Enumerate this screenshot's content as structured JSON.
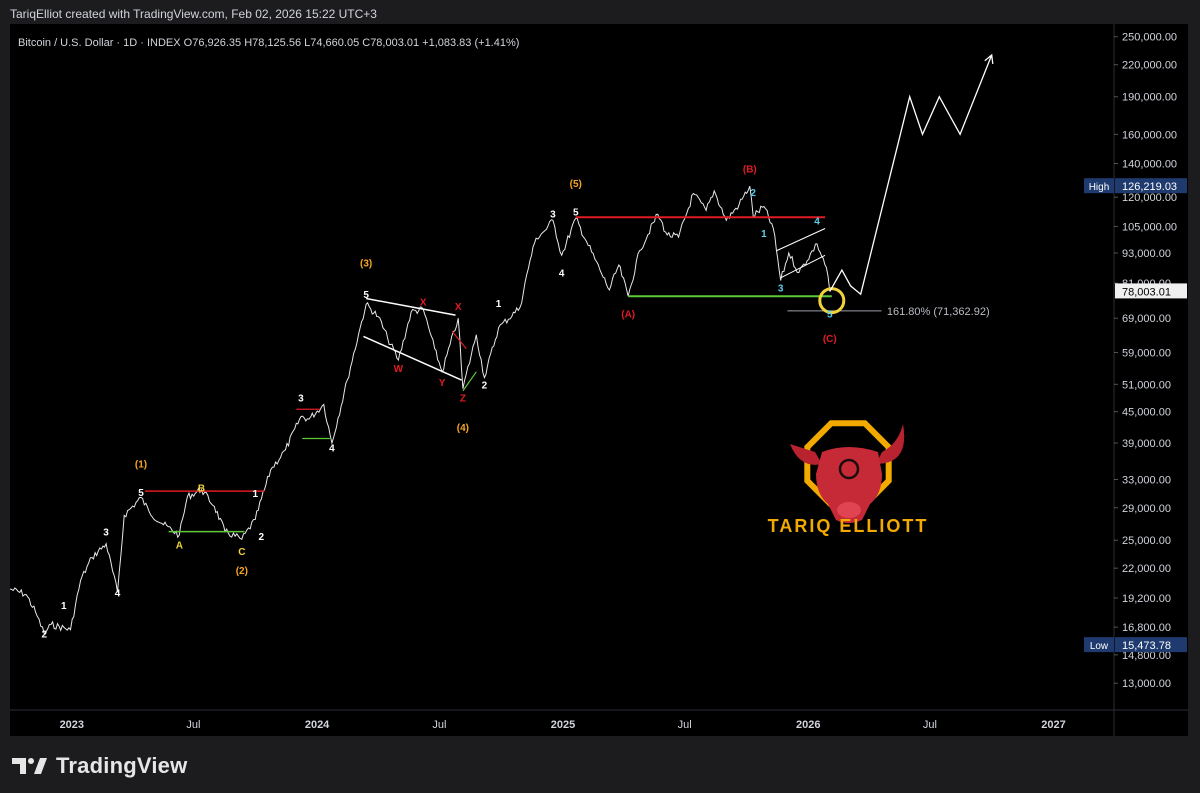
{
  "header": {
    "created_by": "TariqElliot created with TradingView.com, Feb 02, 2026 15:22 UTC+3"
  },
  "legend": {
    "symbol": "Bitcoin / U.S. Dollar · 1D · INDEX",
    "open": "O76,926.35",
    "high": "H78,125.56",
    "low": "L74,660.05",
    "close": "C78,003.01",
    "change": "+1,083.83 (+1.41%)"
  },
  "footer": {
    "brand": "TradingView"
  },
  "logo": {
    "text": "TARIQ ELLIOTT"
  },
  "colors": {
    "red": "#e01b24",
    "green": "#5ec93a",
    "orange": "#f5a623",
    "yellow": "#f0d33a",
    "cyan": "#5ad0f0",
    "white": "#ffffff",
    "label_blue": "#1e3a6e"
  },
  "chart_data": {
    "type": "line",
    "title": "Bitcoin / U.S. Dollar · 1D · INDEX",
    "y_scale": "log",
    "ylim": [
      11500,
      265000
    ],
    "y_ticks": [
      "250,000.00",
      "220,000.00",
      "190,000.00",
      "160,000.00",
      "140,000.00",
      "120,000.00",
      "105,000.00",
      "93,000.00",
      "81,000.00",
      "69,000.00",
      "59,000.00",
      "51,000.00",
      "45,000.00",
      "39,000.00",
      "33,000.00",
      "29,000.00",
      "25,000.00",
      "22,000.00",
      "19,200.00",
      "16,800.00",
      "14,800.00",
      "13,000.00"
    ],
    "x_ticks": [
      "2023",
      "Jul",
      "2024",
      "Jul",
      "2025",
      "Jul",
      "2026",
      "Jul",
      "2027"
    ],
    "xlim": [
      "2022-10-01",
      "2027-04-01"
    ],
    "price_series": {
      "name": "BTCUSD",
      "points": [
        [
          "2022-10-01",
          20000
        ],
        [
          "2022-10-25",
          19500
        ],
        [
          "2022-11-08",
          18000
        ],
        [
          "2022-11-21",
          16300
        ],
        [
          "2022-12-01",
          17000
        ],
        [
          "2022-12-30",
          16600
        ],
        [
          "2023-01-14",
          20800
        ],
        [
          "2023-01-31",
          23100
        ],
        [
          "2023-02-21",
          24600
        ],
        [
          "2023-03-10",
          19700
        ],
        [
          "2023-03-20",
          28000
        ],
        [
          "2023-04-14",
          30400
        ],
        [
          "2023-04-26",
          28500
        ],
        [
          "2023-05-15",
          27000
        ],
        [
          "2023-06-10",
          25600
        ],
        [
          "2023-06-22",
          30500
        ],
        [
          "2023-07-13",
          31500
        ],
        [
          "2023-08-01",
          29200
        ],
        [
          "2023-08-17",
          26000
        ],
        [
          "2023-09-11",
          25100
        ],
        [
          "2023-10-01",
          27500
        ],
        [
          "2023-10-24",
          34500
        ],
        [
          "2023-11-15",
          37800
        ],
        [
          "2023-12-08",
          44000
        ],
        [
          "2023-12-20",
          43500
        ],
        [
          "2024-01-11",
          46500
        ],
        [
          "2024-01-23",
          39000
        ],
        [
          "2024-02-15",
          52000
        ],
        [
          "2024-03-05",
          66000
        ],
        [
          "2024-03-14",
          73500
        ],
        [
          "2024-04-01",
          69500
        ],
        [
          "2024-04-15",
          63000
        ],
        [
          "2024-05-01",
          57000
        ],
        [
          "2024-05-20",
          71000
        ],
        [
          "2024-06-07",
          71900
        ],
        [
          "2024-06-24",
          60000
        ],
        [
          "2024-07-05",
          54000
        ],
        [
          "2024-07-29",
          69000
        ],
        [
          "2024-08-05",
          50000
        ],
        [
          "2024-08-25",
          64000
        ],
        [
          "2024-09-06",
          52600
        ],
        [
          "2024-09-27",
          66000
        ],
        [
          "2024-10-29",
          72500
        ],
        [
          "2024-11-13",
          90000
        ],
        [
          "2024-11-22",
          99500
        ],
        [
          "2024-12-05",
          103000
        ],
        [
          "2024-12-17",
          108000
        ],
        [
          "2024-12-30",
          92000
        ],
        [
          "2025-01-20",
          109000
        ],
        [
          "2025-02-05",
          98000
        ],
        [
          "2025-02-25",
          86000
        ],
        [
          "2025-03-11",
          78500
        ],
        [
          "2025-03-25",
          88000
        ],
        [
          "2025-04-08",
          76300
        ],
        [
          "2025-04-25",
          94000
        ],
        [
          "2025-05-22",
          111000
        ],
        [
          "2025-06-05",
          101000
        ],
        [
          "2025-06-22",
          100000
        ],
        [
          "2025-07-14",
          122000
        ],
        [
          "2025-08-02",
          113000
        ],
        [
          "2025-08-14",
          123500
        ],
        [
          "2025-09-01",
          108000
        ],
        [
          "2025-09-20",
          116000
        ],
        [
          "2025-10-06",
          126200
        ],
        [
          "2025-10-11",
          110000
        ],
        [
          "2025-10-27",
          115000
        ],
        [
          "2025-11-10",
          104000
        ],
        [
          "2025-11-21",
          82000
        ],
        [
          "2025-12-03",
          93000
        ],
        [
          "2025-12-18",
          85000
        ],
        [
          "2026-01-14",
          97000
        ],
        [
          "2026-01-28",
          87000
        ],
        [
          "2026-02-02",
          78003
        ]
      ]
    },
    "projection": {
      "points": [
        [
          "2026-02-02",
          78003
        ],
        [
          "2026-02-20",
          86000
        ],
        [
          "2026-03-05",
          80000
        ],
        [
          "2026-03-20",
          77000
        ],
        [
          "2026-06-01",
          190000
        ],
        [
          "2026-06-20",
          160000
        ],
        [
          "2026-07-15",
          190000
        ],
        [
          "2026-08-15",
          160000
        ],
        [
          "2026-10-01",
          230000
        ]
      ]
    },
    "annotations": {
      "high": {
        "label": "High",
        "value": 126219.03,
        "text": "126,219.03"
      },
      "low": {
        "label": "Low",
        "value": 15473.78,
        "text": "15,473.78"
      },
      "last_price": {
        "value": 78003.01,
        "text": "78,003.01"
      },
      "fib": {
        "text": "161.80% (71,362.92)",
        "value": 71362.92
      },
      "wave_labels": [
        {
          "text": "1",
          "date": "2022-12-20",
          "price": 18600,
          "color": "white",
          "pos": "above"
        },
        {
          "text": "2",
          "date": "2022-11-21",
          "price": 16300,
          "color": "white",
          "pos": "below"
        },
        {
          "text": "3",
          "date": "2023-02-21",
          "price": 26000,
          "color": "white",
          "pos": "above"
        },
        {
          "text": "4",
          "date": "2023-03-10",
          "price": 19700,
          "color": "white",
          "pos": "below"
        },
        {
          "text": "5",
          "date": "2023-04-14",
          "price": 31200,
          "color": "white",
          "pos": "above"
        },
        {
          "text": "(1)",
          "date": "2023-04-14",
          "price": 35500,
          "color": "orange",
          "pos": "above"
        },
        {
          "text": "A",
          "date": "2023-06-10",
          "price": 24500,
          "color": "yellow",
          "pos": "below"
        },
        {
          "text": "B",
          "date": "2023-07-13",
          "price": 31800,
          "color": "yellow",
          "pos": "above"
        },
        {
          "text": "C",
          "date": "2023-09-11",
          "price": 23800,
          "color": "yellow",
          "pos": "below"
        },
        {
          "text": "1",
          "date": "2023-10-01",
          "price": 31000,
          "color": "white",
          "pos": "above"
        },
        {
          "text": "2",
          "date": "2023-10-10",
          "price": 25500,
          "color": "white",
          "pos": "below"
        },
        {
          "text": "(2)",
          "date": "2023-09-11",
          "price": 21800,
          "color": "orange",
          "pos": "below"
        },
        {
          "text": "3",
          "date": "2023-12-08",
          "price": 48000,
          "color": "white",
          "pos": "above"
        },
        {
          "text": "4",
          "date": "2024-01-23",
          "price": 38200,
          "color": "white",
          "pos": "below"
        },
        {
          "text": "5",
          "date": "2024-03-14",
          "price": 77000,
          "color": "white",
          "pos": "above"
        },
        {
          "text": "(3)",
          "date": "2024-03-14",
          "price": 89000,
          "color": "orange",
          "pos": "above"
        },
        {
          "text": "W",
          "date": "2024-05-01",
          "price": 55000,
          "color": "red",
          "pos": "below"
        },
        {
          "text": "X",
          "date": "2024-06-07",
          "price": 74500,
          "color": "red",
          "pos": "above"
        },
        {
          "text": "Y",
          "date": "2024-07-05",
          "price": 51500,
          "color": "red",
          "pos": "below"
        },
        {
          "text": "X",
          "date": "2024-07-29",
          "price": 73000,
          "color": "red",
          "pos": "above"
        },
        {
          "text": "Z",
          "date": "2024-08-05",
          "price": 48000,
          "color": "red",
          "pos": "below"
        },
        {
          "text": "(4)",
          "date": "2024-08-05",
          "price": 42000,
          "color": "orange",
          "pos": "below"
        },
        {
          "text": "1",
          "date": "2024-09-27",
          "price": 74000,
          "color": "white",
          "pos": "above"
        },
        {
          "text": "2",
          "date": "2024-09-06",
          "price": 51000,
          "color": "white",
          "pos": "below"
        },
        {
          "text": "3",
          "date": "2024-12-17",
          "price": 111500,
          "color": "white",
          "pos": "above"
        },
        {
          "text": "4",
          "date": "2024-12-30",
          "price": 85000,
          "color": "white",
          "pos": "below"
        },
        {
          "text": "5",
          "date": "2025-01-20",
          "price": 112500,
          "color": "white",
          "pos": "above"
        },
        {
          "text": "(5)",
          "date": "2025-01-20",
          "price": 128000,
          "color": "orange",
          "pos": "above"
        },
        {
          "text": "(A)",
          "date": "2025-04-08",
          "price": 70500,
          "color": "red",
          "pos": "below"
        },
        {
          "text": "(B)",
          "date": "2025-10-06",
          "price": 137000,
          "color": "red",
          "pos": "above"
        },
        {
          "text": "2",
          "date": "2025-10-11",
          "price": 123000,
          "color": "cyan",
          "pos": "above"
        },
        {
          "text": "1",
          "date": "2025-10-27",
          "price": 102000,
          "color": "cyan",
          "pos": "below"
        },
        {
          "text": "3",
          "date": "2025-11-21",
          "price": 79500,
          "color": "cyan",
          "pos": "below"
        },
        {
          "text": "4",
          "date": "2026-01-14",
          "price": 108000,
          "color": "cyan",
          "pos": "above"
        },
        {
          "text": "5",
          "date": "2026-02-02",
          "price": 70500,
          "color": "cyan",
          "pos": "below"
        },
        {
          "text": "(C)",
          "date": "2026-02-02",
          "price": 63000,
          "color": "red",
          "pos": "below"
        }
      ]
    },
    "grid": false,
    "legend_position": "top-left"
  }
}
